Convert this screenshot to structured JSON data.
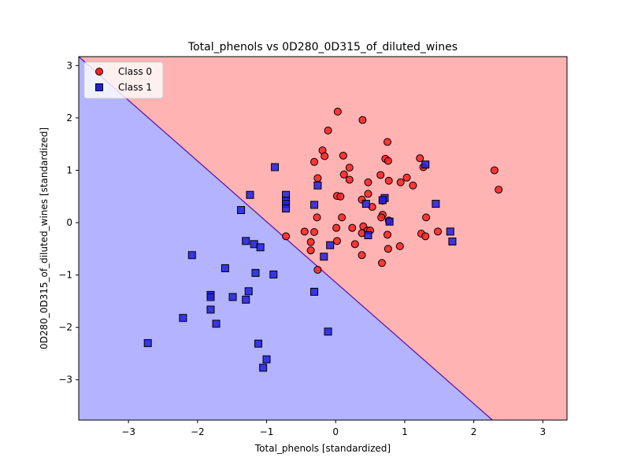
{
  "chart_data": {
    "type": "scatter",
    "title": "Total_phenols vs 0D280_0D315_of_diluted_wines",
    "xlabel": "Total_phenols [standardized]",
    "ylabel": "0D280_0D315_of_diluted_wines [standardized]",
    "xlim": [
      -3.72,
      3.35
    ],
    "ylim": [
      -3.77,
      3.17
    ],
    "x_ticks": [
      -3,
      -2,
      -1,
      0,
      1,
      2,
      3
    ],
    "y_ticks": [
      -3,
      -2,
      -1,
      0,
      1,
      2,
      3
    ],
    "grid": false,
    "legend_position": "top-left",
    "decision_boundary": {
      "points": [
        [
          -3.72,
          3.17
        ],
        [
          2.27,
          -3.77
        ]
      ],
      "class0_region": "upper-right",
      "class1_region": "lower-left"
    },
    "colors": {
      "class0_region": "#ffb3b3",
      "class1_region": "#b3b3ff",
      "class0_marker": "#ff2020",
      "class1_marker": "#2020e0",
      "boundary": "#5a0f9f"
    },
    "series": [
      {
        "name": "Class 0",
        "marker": "circle",
        "points": [
          [
            0.03,
            2.12
          ],
          [
            0.39,
            1.96
          ],
          [
            -0.11,
            1.76
          ],
          [
            0.75,
            1.54
          ],
          [
            -0.19,
            1.38
          ],
          [
            -0.16,
            1.27
          ],
          [
            0.11,
            1.28
          ],
          [
            -0.31,
            1.16
          ],
          [
            0.72,
            1.22
          ],
          [
            0.76,
            1.18
          ],
          [
            1.22,
            1.23
          ],
          [
            1.27,
            1.06
          ],
          [
            2.3,
            1.0
          ],
          [
            2.36,
            0.63
          ],
          [
            0.2,
            1.05
          ],
          [
            0.12,
            0.92
          ],
          [
            0.2,
            0.82
          ],
          [
            0.65,
            0.91
          ],
          [
            0.77,
            0.8
          ],
          [
            1.03,
            0.86
          ],
          [
            0.94,
            0.77
          ],
          [
            1.12,
            0.71
          ],
          [
            -0.26,
            0.85
          ],
          [
            0.47,
            0.77
          ],
          [
            0.02,
            0.51
          ],
          [
            0.07,
            0.5
          ],
          [
            0.47,
            0.55
          ],
          [
            0.38,
            0.44
          ],
          [
            0.53,
            0.3
          ],
          [
            0.68,
            0.42
          ],
          [
            0.68,
            0.15
          ],
          [
            0.66,
            0.1
          ],
          [
            0.77,
            0.04
          ],
          [
            1.31,
            0.1
          ],
          [
            0.09,
            0.1
          ],
          [
            -0.27,
            0.1
          ],
          [
            -0.45,
            -0.17
          ],
          [
            -0.31,
            -0.18
          ],
          [
            0.01,
            -0.1
          ],
          [
            0.24,
            -0.1
          ],
          [
            0.4,
            -0.07
          ],
          [
            0.46,
            -0.15
          ],
          [
            0.5,
            -0.15
          ],
          [
            0.38,
            -0.2
          ],
          [
            0.75,
            -0.23
          ],
          [
            1.24,
            -0.21
          ],
          [
            1.3,
            -0.26
          ],
          [
            1.48,
            -0.17
          ],
          [
            -0.72,
            -0.26
          ],
          [
            -0.36,
            -0.37
          ],
          [
            0.02,
            -0.35
          ],
          [
            0.28,
            -0.41
          ],
          [
            0.93,
            -0.45
          ],
          [
            0.76,
            -0.5
          ],
          [
            -0.36,
            -0.53
          ],
          [
            0.38,
            -0.62
          ],
          [
            0.67,
            -0.77
          ],
          [
            -0.26,
            -0.9
          ]
        ]
      },
      {
        "name": "Class 1",
        "marker": "square",
        "points": [
          [
            -0.88,
            1.06
          ],
          [
            -0.26,
            0.71
          ],
          [
            -1.24,
            0.53
          ],
          [
            -0.72,
            0.53
          ],
          [
            -0.72,
            0.42
          ],
          [
            -0.72,
            0.36
          ],
          [
            -0.72,
            0.27
          ],
          [
            -0.31,
            0.34
          ],
          [
            -1.37,
            0.24
          ],
          [
            0.44,
            0.36
          ],
          [
            0.71,
            0.47
          ],
          [
            0.68,
            0.43
          ],
          [
            1.3,
            1.11
          ],
          [
            1.45,
            0.36
          ],
          [
            0.78,
            0.02
          ],
          [
            0.47,
            -0.24
          ],
          [
            1.66,
            -0.17
          ],
          [
            1.69,
            -0.36
          ],
          [
            -1.3,
            -0.35
          ],
          [
            -1.18,
            -0.41
          ],
          [
            -1.09,
            -0.47
          ],
          [
            -0.08,
            -0.43
          ],
          [
            -0.17,
            -0.65
          ],
          [
            -2.08,
            -0.62
          ],
          [
            -1.6,
            -0.87
          ],
          [
            -1.16,
            -0.96
          ],
          [
            -0.9,
            -0.99
          ],
          [
            -0.31,
            -1.32
          ],
          [
            -1.26,
            -1.31
          ],
          [
            -1.49,
            -1.42
          ],
          [
            -1.3,
            -1.47
          ],
          [
            -1.81,
            -1.38
          ],
          [
            -1.81,
            -1.42
          ],
          [
            -1.81,
            -1.66
          ],
          [
            -1.73,
            -1.93
          ],
          [
            -2.21,
            -1.82
          ],
          [
            -0.11,
            -2.08
          ],
          [
            -2.72,
            -2.3
          ],
          [
            -1.12,
            -2.31
          ],
          [
            -1.0,
            -2.61
          ],
          [
            -1.05,
            -2.77
          ]
        ]
      }
    ]
  }
}
